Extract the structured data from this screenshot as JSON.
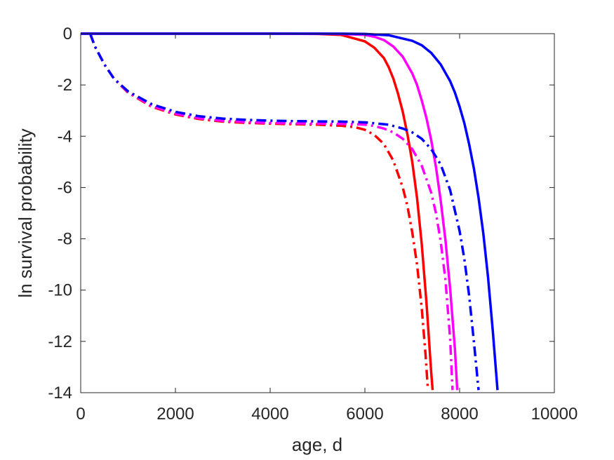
{
  "chart_data": {
    "type": "line",
    "title": "",
    "xlabel": "age, d",
    "ylabel": "ln survival probability",
    "xlim": [
      0,
      10000
    ],
    "ylim": [
      -14,
      0
    ],
    "x_ticks": [
      0,
      2000,
      4000,
      6000,
      8000,
      10000
    ],
    "y_ticks": [
      0,
      -2,
      -4,
      -6,
      -8,
      -10,
      -12,
      -14
    ],
    "x_tick_labels": [
      "0",
      "2000",
      "4000",
      "6000",
      "8000",
      "10000"
    ],
    "y_tick_labels": [
      "0",
      "-2",
      "-4",
      "-6",
      "-8",
      "-10",
      "-12",
      "-14"
    ],
    "grid": false,
    "legend": "none",
    "series": [
      {
        "color": "#ff0000",
        "style": "solid",
        "x": [
          0,
          1000,
          2000,
          3000,
          4000,
          5000,
          5500,
          6000,
          6200,
          6400,
          6500,
          6600,
          6700,
          6800,
          6900,
          7000,
          7100,
          7200,
          7300,
          7400,
          7430
        ],
        "y": [
          0,
          0,
          0,
          0,
          0,
          -0.01,
          -0.05,
          -0.3,
          -0.55,
          -0.95,
          -1.3,
          -1.75,
          -2.35,
          -3.05,
          -3.95,
          -5.0,
          -6.4,
          -8.2,
          -10.5,
          -13.2,
          -13.9
        ]
      },
      {
        "color": "#ff00ff",
        "style": "solid",
        "x": [
          0,
          1000,
          2000,
          3000,
          4000,
          5000,
          5500,
          6000,
          6200,
          6400,
          6600,
          6800,
          7000,
          7100,
          7200,
          7300,
          7400,
          7500,
          7600,
          7700,
          7800,
          7900,
          7950
        ],
        "y": [
          0,
          0,
          0,
          0,
          0,
          0,
          -0.01,
          -0.05,
          -0.12,
          -0.25,
          -0.5,
          -0.9,
          -1.55,
          -2.0,
          -2.6,
          -3.3,
          -4.15,
          -5.2,
          -6.5,
          -8.05,
          -9.95,
          -12.3,
          -13.9
        ]
      },
      {
        "color": "#0000ff",
        "style": "solid",
        "x": [
          0,
          1000,
          2000,
          3000,
          4000,
          5000,
          5500,
          6000,
          6500,
          7000,
          7200,
          7400,
          7600,
          7800,
          7900,
          8000,
          8100,
          8200,
          8300,
          8400,
          8500,
          8600,
          8700,
          8800
        ],
        "y": [
          0,
          0,
          0,
          0,
          0,
          0,
          0,
          -0.01,
          -0.06,
          -0.28,
          -0.45,
          -0.75,
          -1.2,
          -1.85,
          -2.3,
          -2.85,
          -3.5,
          -4.3,
          -5.25,
          -6.4,
          -7.8,
          -9.5,
          -11.6,
          -13.9
        ]
      },
      {
        "color": "#ff0000",
        "style": "dashdot",
        "x": [
          200,
          300,
          500,
          700,
          1000,
          1500,
          2000,
          2500,
          3000,
          3500,
          4000,
          4500,
          5000,
          5500,
          5800,
          6000,
          6200,
          6400,
          6600,
          6800,
          6900,
          7000,
          7100,
          7200,
          7280,
          7330
        ],
        "y": [
          0,
          -0.5,
          -1.2,
          -1.75,
          -2.3,
          -2.85,
          -3.15,
          -3.33,
          -3.43,
          -3.48,
          -3.51,
          -3.53,
          -3.55,
          -3.59,
          -3.65,
          -3.75,
          -3.95,
          -4.3,
          -4.95,
          -6.0,
          -6.75,
          -7.75,
          -9.0,
          -10.7,
          -12.5,
          -13.9
        ]
      },
      {
        "color": "#ff00ff",
        "style": "dashdot",
        "x": [
          200,
          300,
          500,
          700,
          1000,
          1500,
          2000,
          2500,
          3000,
          3500,
          4000,
          4500,
          5000,
          5500,
          6000,
          6200,
          6400,
          6600,
          6800,
          7000,
          7200,
          7400,
          7500,
          7600,
          7700,
          7800,
          7850
        ],
        "y": [
          0,
          -0.5,
          -1.2,
          -1.75,
          -2.28,
          -2.82,
          -3.12,
          -3.3,
          -3.4,
          -3.45,
          -3.48,
          -3.5,
          -3.51,
          -3.52,
          -3.55,
          -3.6,
          -3.7,
          -3.85,
          -4.1,
          -4.5,
          -5.15,
          -6.2,
          -7.0,
          -8.1,
          -9.6,
          -11.9,
          -13.9
        ]
      },
      {
        "color": "#0000ff",
        "style": "dashdot",
        "x": [
          200,
          300,
          500,
          700,
          1000,
          1500,
          2000,
          2500,
          3000,
          3500,
          4000,
          4500,
          5000,
          5500,
          6000,
          6500,
          6800,
          7000,
          7200,
          7400,
          7600,
          7800,
          8000,
          8100,
          8200,
          8300,
          8400
        ],
        "y": [
          0,
          -0.5,
          -1.2,
          -1.75,
          -2.25,
          -2.75,
          -3.05,
          -3.22,
          -3.31,
          -3.36,
          -3.39,
          -3.41,
          -3.42,
          -3.43,
          -3.46,
          -3.55,
          -3.7,
          -3.85,
          -4.1,
          -4.5,
          -5.1,
          -6.1,
          -7.7,
          -8.8,
          -10.2,
          -12.0,
          -13.9
        ]
      }
    ]
  }
}
